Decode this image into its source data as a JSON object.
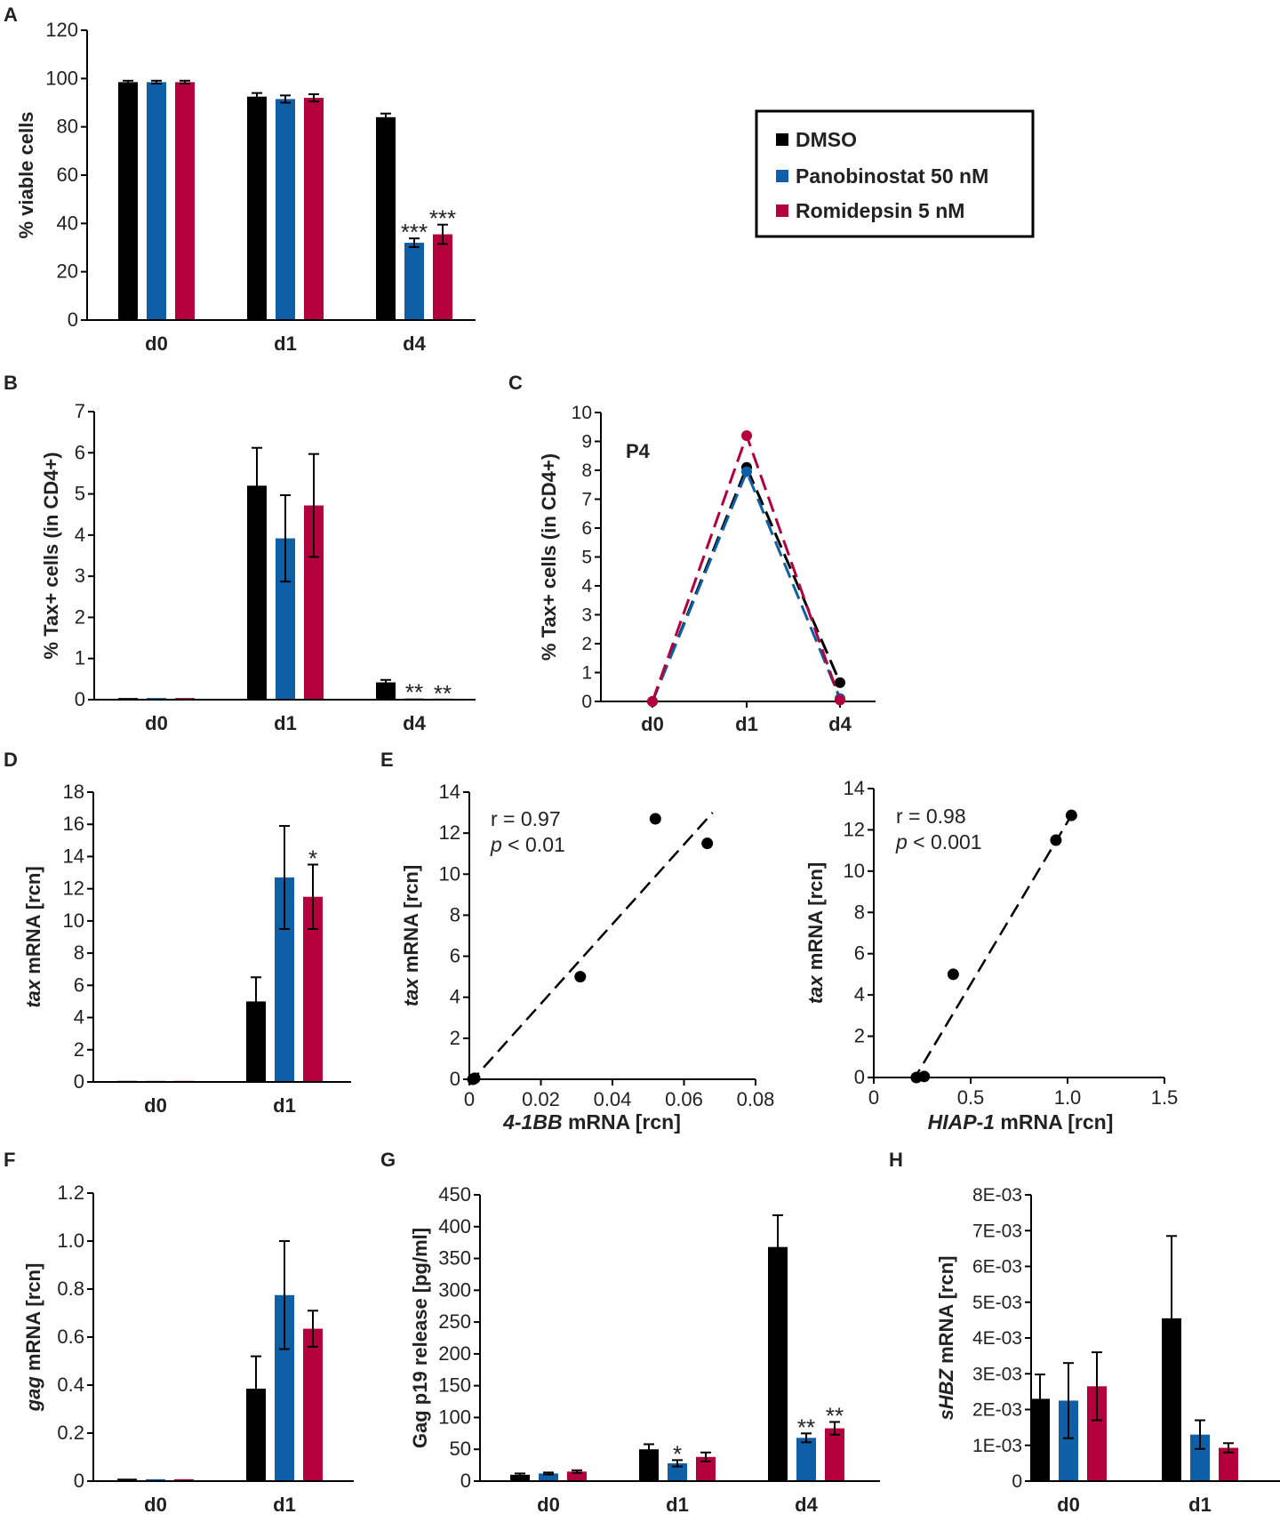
{
  "colors": {
    "dmso": "#000000",
    "pano": "#0f5fa6",
    "romi": "#b5003e",
    "axis": "#000000"
  },
  "legend": {
    "entries": [
      {
        "key": "dmso",
        "label": "DMSO"
      },
      {
        "key": "pano",
        "label": "Panobinostat 50 nM"
      },
      {
        "key": "romi",
        "label": "Romidepsin 5 nM"
      }
    ]
  },
  "chart_data": [
    {
      "panel": "A",
      "type": "bar",
      "ylabel": [
        {
          "t": "% viable cells",
          "it": false
        }
      ],
      "ylim": [
        0,
        120
      ],
      "yticks": [
        "0",
        "20",
        "40",
        "60",
        "80",
        "100",
        "120"
      ],
      "categories": [
        "d0",
        "d1",
        "d4"
      ],
      "series": [
        {
          "key": "dmso",
          "values": [
            98.5,
            92.5,
            84
          ],
          "errors": [
            0.6,
            1.5,
            1.5
          ]
        },
        {
          "key": "pano",
          "values": [
            98.5,
            91.5,
            32
          ],
          "errors": [
            0.6,
            1.5,
            1.8
          ]
        },
        {
          "key": "romi",
          "values": [
            98.5,
            92,
            35.5
          ],
          "errors": [
            0.6,
            1.5,
            4
          ]
        }
      ],
      "annotations": [
        {
          "series": "pano",
          "cat": 2,
          "text": "***"
        },
        {
          "series": "romi",
          "cat": 2,
          "text": "***"
        }
      ]
    },
    {
      "panel": "B",
      "type": "bar",
      "ylabel": [
        {
          "t": "% Tax+ cells (in CD4+)",
          "it": false
        }
      ],
      "ylim": [
        0,
        7
      ],
      "yticks": [
        "0",
        "1",
        "2",
        "3",
        "4",
        "5",
        "6",
        "7"
      ],
      "categories": [
        "d0",
        "d1",
        "d4"
      ],
      "series": [
        {
          "key": "dmso",
          "values": [
            0.04,
            5.2,
            0.42
          ],
          "errors": [
            0,
            0.92,
            0.06
          ]
        },
        {
          "key": "pano",
          "values": [
            0.04,
            3.92,
            0.03
          ],
          "errors": [
            0,
            1.05,
            0
          ]
        },
        {
          "key": "romi",
          "values": [
            0.04,
            4.72,
            0.0
          ],
          "errors": [
            0,
            1.25,
            0
          ]
        }
      ],
      "annotations": [
        {
          "series": "pano",
          "cat": 2,
          "text": "**"
        },
        {
          "series": "romi",
          "cat": 2,
          "text": "**"
        }
      ]
    },
    {
      "panel": "C",
      "type": "line",
      "label": "P4",
      "ylabel": [
        {
          "t": "% Tax+ cells (in CD4+)",
          "it": false
        }
      ],
      "ylim": [
        0,
        10
      ],
      "yticks": [
        "0",
        "1",
        "2",
        "3",
        "4",
        "5",
        "6",
        "7",
        "8",
        "9",
        "10"
      ],
      "categories": [
        "d0",
        "d1",
        "d4"
      ],
      "series": [
        {
          "key": "dmso",
          "values": [
            0,
            8.1,
            0.65
          ]
        },
        {
          "key": "pano",
          "values": [
            0,
            7.95,
            0.1
          ]
        },
        {
          "key": "romi",
          "values": [
            0,
            9.2,
            0.05
          ]
        }
      ]
    },
    {
      "panel": "D",
      "type": "bar",
      "ylabel": [
        {
          "t": "tax",
          "it": true
        },
        {
          "t": " mRNA [rcn]",
          "it": false
        }
      ],
      "ylim": [
        0,
        18
      ],
      "yticks": [
        "0",
        "2",
        "4",
        "6",
        "8",
        "10",
        "12",
        "14",
        "16",
        "18"
      ],
      "categories": [
        "d0",
        "d1"
      ],
      "series": [
        {
          "key": "dmso",
          "values": [
            0.05,
            5.0
          ],
          "errors": [
            0,
            1.5
          ]
        },
        {
          "key": "pano",
          "values": [
            0.05,
            12.7
          ],
          "errors": [
            0,
            3.2
          ]
        },
        {
          "key": "romi",
          "values": [
            0.05,
            11.5
          ],
          "errors": [
            0,
            2.0
          ]
        }
      ],
      "annotations": [
        {
          "series": "romi",
          "cat": 1,
          "text": "*"
        }
      ]
    },
    {
      "panel": "E1",
      "type": "scatter",
      "ylabel": [
        {
          "t": "tax",
          "it": true
        },
        {
          "t": " mRNA [rcn]",
          "it": false
        }
      ],
      "xlabel": [
        {
          "t": "4-1BB",
          "it": true
        },
        {
          "t": " mRNA [rcn]",
          "it": false
        }
      ],
      "xlim": [
        0,
        0.08
      ],
      "ylim": [
        0,
        14
      ],
      "xticks": [
        {
          "v": 0,
          "t": "0"
        },
        {
          "v": 0.02,
          "t": "0.02"
        },
        {
          "v": 0.04,
          "t": "0.04"
        },
        {
          "v": 0.06,
          "t": "0.06"
        },
        {
          "v": 0.08,
          "t": "0.08"
        }
      ],
      "yticks": [
        {
          "v": 0,
          "t": "0"
        },
        {
          "v": 2,
          "t": "2"
        },
        {
          "v": 4,
          "t": "4"
        },
        {
          "v": 6,
          "t": "6"
        },
        {
          "v": 8,
          "t": "8"
        },
        {
          "v": 10,
          "t": "10"
        },
        {
          "v": 12,
          "t": "12"
        },
        {
          "v": 14,
          "t": "14"
        }
      ],
      "points": [
        [
          0.001,
          0.0
        ],
        [
          0.0015,
          0.05
        ],
        [
          0.031,
          5.0
        ],
        [
          0.052,
          12.7
        ],
        [
          0.0665,
          11.5
        ]
      ],
      "fit": [
        [
          0,
          -0.2
        ],
        [
          0.068,
          13.0
        ]
      ],
      "stat_r": "r = 0.97",
      "stat_p_italic": "p",
      "stat_p_rest": " < 0.01"
    },
    {
      "panel": "E2",
      "type": "scatter",
      "ylabel": [
        {
          "t": "tax",
          "it": true
        },
        {
          "t": " mRNA [rcn]",
          "it": false
        }
      ],
      "xlabel": [
        {
          "t": "HIAP-1",
          "it": true
        },
        {
          "t": " mRNA [rcn]",
          "it": false
        }
      ],
      "xlim": [
        0,
        1.5
      ],
      "ylim": [
        0,
        14
      ],
      "xticks": [
        {
          "v": 0,
          "t": "0"
        },
        {
          "v": 0.5,
          "t": "0.5"
        },
        {
          "v": 1.0,
          "t": "1.0"
        },
        {
          "v": 1.5,
          "t": "1.5"
        }
      ],
      "yticks": [
        {
          "v": 0,
          "t": "0"
        },
        {
          "v": 2,
          "t": "2"
        },
        {
          "v": 4,
          "t": "4"
        },
        {
          "v": 6,
          "t": "6"
        },
        {
          "v": 8,
          "t": "8"
        },
        {
          "v": 10,
          "t": "10"
        },
        {
          "v": 12,
          "t": "12"
        },
        {
          "v": 14,
          "t": "14"
        }
      ],
      "points": [
        [
          0.22,
          0.0
        ],
        [
          0.26,
          0.05
        ],
        [
          0.41,
          5.0
        ],
        [
          0.94,
          11.5
        ],
        [
          1.02,
          12.7
        ]
      ],
      "fit": [
        [
          0.2,
          -0.2
        ],
        [
          1.02,
          12.7
        ]
      ],
      "stat_r": "r = 0.98",
      "stat_p_italic": "p",
      "stat_p_rest": " < 0.001"
    },
    {
      "panel": "F",
      "type": "bar",
      "ylabel": [
        {
          "t": "gag",
          "it": true
        },
        {
          "t": " mRNA [rcn]",
          "it": false
        }
      ],
      "ylim": [
        0,
        1.2
      ],
      "yticks": [
        "0",
        "0.2",
        "0.4",
        "0.6",
        "0.8",
        "1.0",
        "1.2"
      ],
      "categories": [
        "d0",
        "d1"
      ],
      "series": [
        {
          "key": "dmso",
          "values": [
            0.01,
            0.385
          ],
          "errors": [
            0,
            0.135
          ]
        },
        {
          "key": "pano",
          "values": [
            0.008,
            0.775
          ],
          "errors": [
            0,
            0.225
          ]
        },
        {
          "key": "romi",
          "values": [
            0.008,
            0.635
          ],
          "errors": [
            0,
            0.075
          ]
        }
      ]
    },
    {
      "panel": "G",
      "type": "bar",
      "ylabel": [
        {
          "t": "Gag p19 release [pg/ml]",
          "it": false
        }
      ],
      "ylim": [
        0,
        450
      ],
      "yticks": [
        "0",
        "50",
        "100",
        "150",
        "200",
        "250",
        "300",
        "350",
        "400",
        "450"
      ],
      "categories": [
        "d0",
        "d1",
        "d4"
      ],
      "series": [
        {
          "key": "dmso",
          "values": [
            10,
            50,
            368
          ],
          "errors": [
            2,
            8,
            50
          ]
        },
        {
          "key": "pano",
          "values": [
            12,
            28,
            68
          ],
          "errors": [
            1.5,
            5,
            7
          ]
        },
        {
          "key": "romi",
          "values": [
            15,
            38,
            83
          ],
          "errors": [
            2,
            7,
            10
          ]
        }
      ],
      "annotations": [
        {
          "series": "pano",
          "cat": 1,
          "text": "*"
        },
        {
          "series": "pano",
          "cat": 2,
          "text": "**"
        },
        {
          "series": "romi",
          "cat": 2,
          "text": "**"
        }
      ]
    },
    {
      "panel": "H",
      "type": "bar",
      "ylabel": [
        {
          "t": "sHBZ",
          "it": true
        },
        {
          "t": " mRNA [rcn]",
          "it": false
        }
      ],
      "ylim": [
        0,
        0.008
      ],
      "yticks": [
        "0",
        "1E-03",
        "2E-03",
        "3E-03",
        "4E-03",
        "5E-03",
        "6E-03",
        "7E-03",
        "8E-03"
      ],
      "categories": [
        "d0",
        "d1"
      ],
      "series": [
        {
          "key": "dmso",
          "values": [
            0.0023,
            0.00455
          ],
          "errors": [
            0.00068,
            0.0023
          ]
        },
        {
          "key": "pano",
          "values": [
            0.00225,
            0.0013
          ],
          "errors": [
            0.00105,
            0.0004
          ]
        },
        {
          "key": "romi",
          "values": [
            0.00265,
            0.00093
          ],
          "errors": [
            0.00095,
            0.00013
          ]
        }
      ]
    }
  ]
}
